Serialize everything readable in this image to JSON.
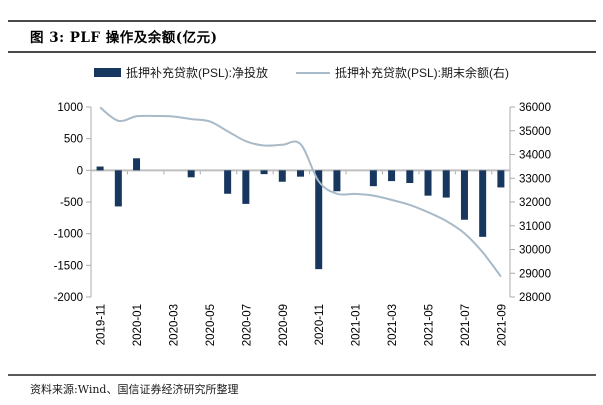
{
  "figure": {
    "title": "图 3: PLF 操作及余额(亿元)",
    "source_note": "资料来源:Wind、国信证券经济研究所整理"
  },
  "colors": {
    "bar": "#17375E",
    "line": "#A8BAC8",
    "zero_line": "#BFBFBF",
    "axis_line": "#ABABAB",
    "rule": "#4a4a4a",
    "text": "#000000"
  },
  "chart_data": {
    "type": "bar+line combo",
    "categories": [
      "2019-11",
      "2019-12",
      "2020-01",
      "2020-02",
      "2020-03",
      "2020-04",
      "2020-05",
      "2020-06",
      "2020-07",
      "2020-08",
      "2020-09",
      "2020-10",
      "2020-11",
      "2020-12",
      "2021-01",
      "2021-02",
      "2021-03",
      "2021-04",
      "2021-05",
      "2021-06",
      "2021-07",
      "2021-08",
      "2021-09"
    ],
    "x_tick_label_every": 2,
    "series": [
      {
        "name": "抵押补充贷款(PSL):净投放",
        "type": "bar",
        "axis": "left",
        "color": "#17375E",
        "values": [
          60,
          -570,
          190,
          0,
          0,
          -110,
          0,
          -370,
          -530,
          -60,
          -180,
          -100,
          -1560,
          -330,
          0,
          -250,
          -170,
          -200,
          -400,
          -430,
          -780,
          -1050,
          -270
        ]
      },
      {
        "name": "抵押补充贷款(PSL):期末余额(右)",
        "type": "line",
        "axis": "right",
        "color": "#A8BAC8",
        "values": [
          35980,
          35420,
          35610,
          35620,
          35600,
          35490,
          35400,
          34980,
          34560,
          34380,
          34410,
          34440,
          32870,
          32350,
          32340,
          32270,
          32090,
          31880,
          31570,
          31200,
          30680,
          29880,
          28860
        ]
      }
    ],
    "left_axis": {
      "min": -2000,
      "max": 1000,
      "ticks": [
        1000,
        500,
        0,
        -500,
        -1000,
        -1500,
        -2000
      ]
    },
    "right_axis": {
      "min": 28000,
      "max": 36000,
      "ticks": [
        36000,
        35000,
        34000,
        33000,
        32000,
        31000,
        30000,
        29000,
        28000
      ]
    },
    "grid": false,
    "legend_position": "top"
  }
}
